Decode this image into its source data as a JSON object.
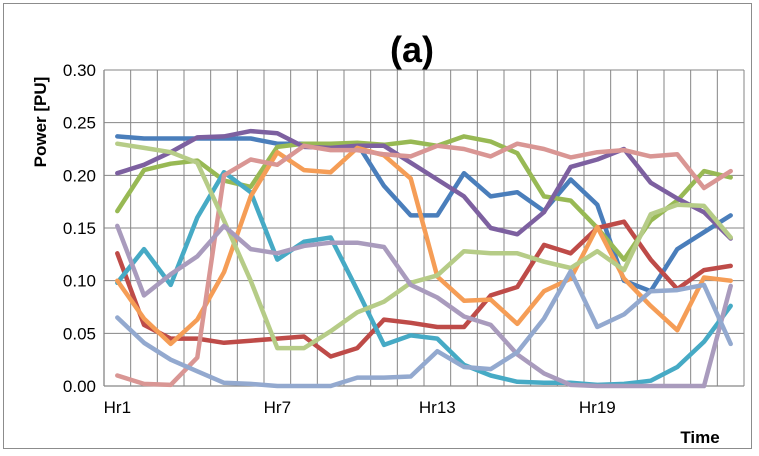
{
  "chart_data": {
    "type": "line",
    "title": "(a)",
    "xlabel": "Time",
    "ylabel": "Power [PU]",
    "ylim": [
      0,
      0.3
    ],
    "ytick_labels": [
      "0.00",
      "0.05",
      "0.10",
      "0.15",
      "0.20",
      "0.25",
      "0.30"
    ],
    "x": [
      1,
      2,
      3,
      4,
      5,
      6,
      7,
      8,
      9,
      10,
      11,
      12,
      13,
      14,
      15,
      16,
      17,
      18,
      19,
      20,
      21,
      22,
      23,
      24
    ],
    "xtick_positions": [
      1,
      7,
      13,
      19
    ],
    "xtick_labels": [
      "Hr1",
      "Hr7",
      "Hr13",
      "Hr19"
    ],
    "grid": true,
    "legend": "none",
    "series": [
      {
        "color": "#4a7ebb",
        "values": [
          0.237,
          0.235,
          0.235,
          0.235,
          0.235,
          0.235,
          0.23,
          0.23,
          0.23,
          0.23,
          0.19,
          0.162,
          0.162,
          0.202,
          0.18,
          0.184,
          0.166,
          0.196,
          0.172,
          0.1,
          0.09,
          0.13,
          0.146,
          0.162
        ]
      },
      {
        "color": "#be4b48",
        "values": [
          0.126,
          0.058,
          0.045,
          0.045,
          0.041,
          0.043,
          0.045,
          0.047,
          0.028,
          0.036,
          0.063,
          0.06,
          0.056,
          0.056,
          0.086,
          0.094,
          0.134,
          0.126,
          0.15,
          0.156,
          0.12,
          0.092,
          0.11,
          0.114
        ]
      },
      {
        "color": "#98b954",
        "values": [
          0.166,
          0.205,
          0.211,
          0.214,
          0.195,
          0.189,
          0.227,
          0.23,
          0.23,
          0.231,
          0.229,
          0.232,
          0.228,
          0.237,
          0.232,
          0.221,
          0.18,
          0.176,
          0.15,
          0.12,
          0.157,
          0.176,
          0.204,
          0.198
        ]
      },
      {
        "color": "#7d60a0",
        "values": [
          0.202,
          0.21,
          0.222,
          0.236,
          0.237,
          0.242,
          0.24,
          0.227,
          0.226,
          0.228,
          0.228,
          0.212,
          0.196,
          0.18,
          0.15,
          0.144,
          0.165,
          0.208,
          0.215,
          0.225,
          0.193,
          0.178,
          0.165,
          0.14
        ]
      },
      {
        "color": "#46aac5",
        "values": [
          0.098,
          0.13,
          0.096,
          0.16,
          0.203,
          0.184,
          0.12,
          0.137,
          0.141,
          0.091,
          0.039,
          0.048,
          0.045,
          0.02,
          0.01,
          0.004,
          0.003,
          0.003,
          0.001,
          0.002,
          0.005,
          0.018,
          0.042,
          0.076
        ]
      },
      {
        "color": "#f59d56",
        "values": [
          0.1,
          0.064,
          0.04,
          0.063,
          0.108,
          0.18,
          0.222,
          0.205,
          0.203,
          0.226,
          0.219,
          0.197,
          0.104,
          0.081,
          0.082,
          0.059,
          0.09,
          0.102,
          0.151,
          0.102,
          0.076,
          0.053,
          0.103,
          0.1
        ]
      },
      {
        "color": "#d99694",
        "values": [
          0.01,
          0.002,
          0.001,
          0.027,
          0.2,
          0.215,
          0.21,
          0.228,
          0.224,
          0.224,
          0.22,
          0.218,
          0.228,
          0.225,
          0.218,
          0.23,
          0.225,
          0.217,
          0.222,
          0.224,
          0.218,
          0.22,
          0.188,
          0.204
        ]
      },
      {
        "color": "#b6cc87",
        "values": [
          0.23,
          0.226,
          0.222,
          0.212,
          0.157,
          0.1,
          0.036,
          0.036,
          0.052,
          0.07,
          0.08,
          0.098,
          0.105,
          0.128,
          0.126,
          0.126,
          0.118,
          0.112,
          0.128,
          0.11,
          0.163,
          0.172,
          0.171,
          0.141
        ]
      },
      {
        "color": "#a99bbd",
        "values": [
          0.152,
          0.086,
          0.106,
          0.123,
          0.152,
          0.13,
          0.126,
          0.133,
          0.136,
          0.136,
          0.132,
          0.096,
          0.084,
          0.066,
          0.058,
          0.03,
          0.012,
          0.001,
          0.0,
          0.0,
          0.0,
          0.0,
          0.0,
          0.095
        ]
      },
      {
        "color": "#93a9cf",
        "values": [
          0.065,
          0.041,
          0.025,
          0.014,
          0.003,
          0.002,
          0.0,
          0.0,
          0.0,
          0.008,
          0.008,
          0.009,
          0.033,
          0.018,
          0.016,
          0.032,
          0.064,
          0.109,
          0.056,
          0.068,
          0.09,
          0.091,
          0.096,
          0.04
        ]
      }
    ]
  }
}
